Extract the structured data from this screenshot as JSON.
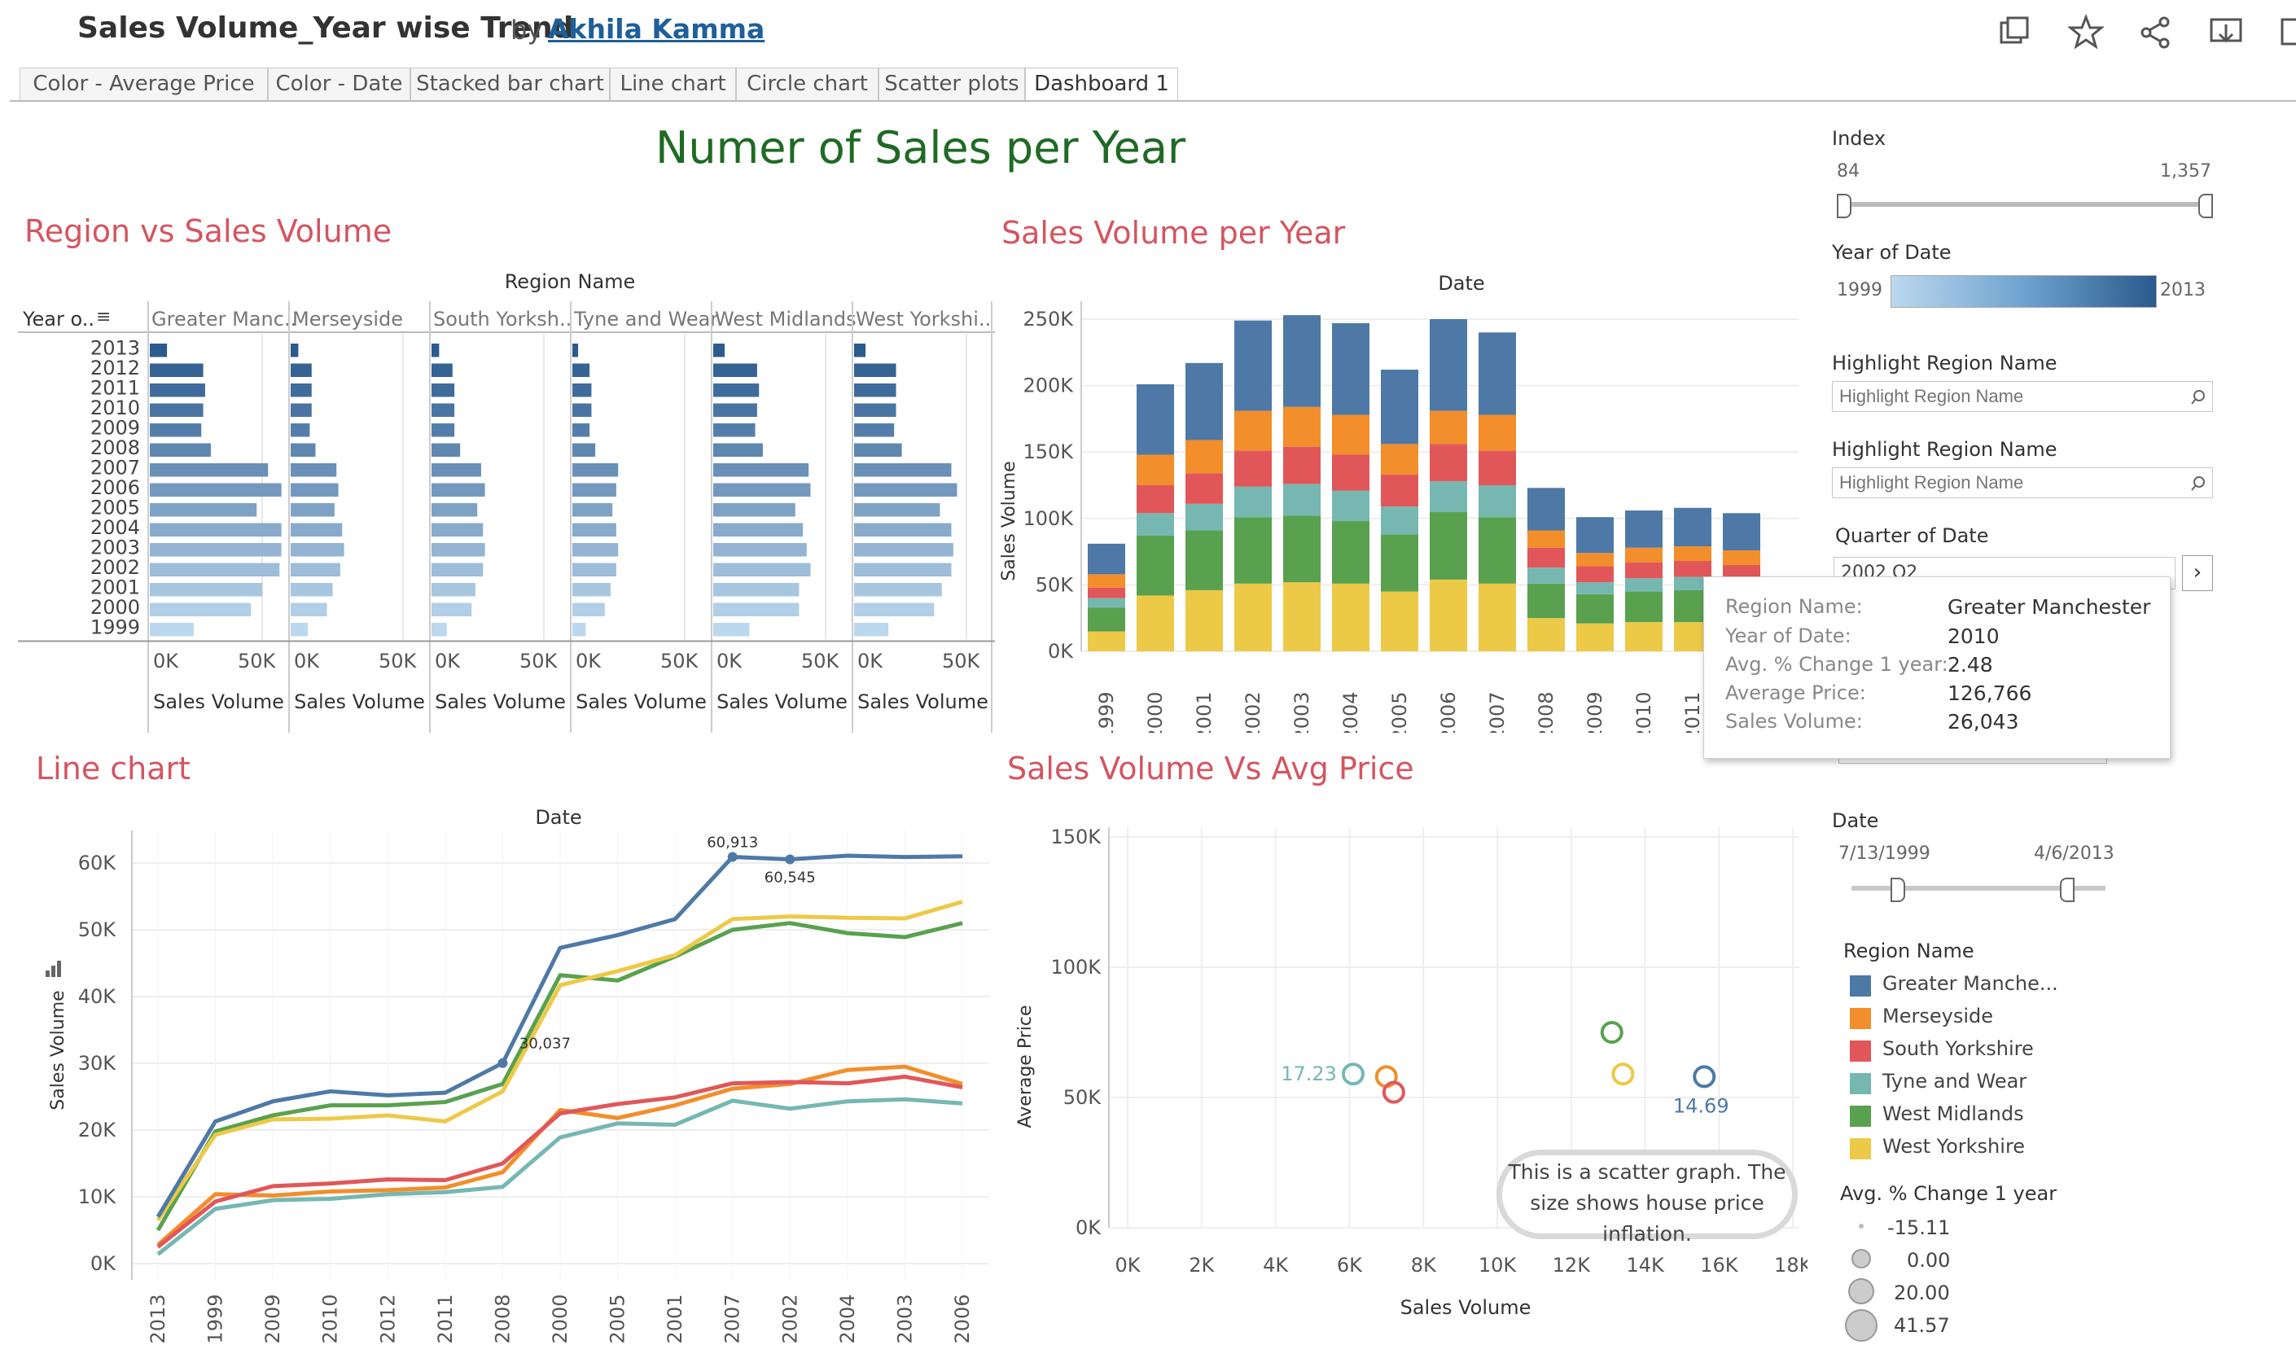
{
  "header": {
    "title": "Sales Volume_Year wise Trend",
    "by": "by",
    "author": "Akhila Kamma"
  },
  "tabs": [
    {
      "label": "Color - Average Price"
    },
    {
      "label": "Color - Date"
    },
    {
      "label": "Stacked bar chart"
    },
    {
      "label": "Line chart"
    },
    {
      "label": "Circle chart"
    },
    {
      "label": "Scatter plots"
    },
    {
      "label": "Dashboard 1",
      "active": true
    }
  ],
  "dashboard_title": "Numer of Sales per Year",
  "sheets": {
    "region_vs_sales": "Region vs Sales Volume",
    "sales_per_year": "Sales Volume per Year",
    "line_chart": "Line chart",
    "scatter": "Sales Volume Vs Avg Price"
  },
  "colors": {
    "Greater Manchester": "#4e79a7",
    "Merseyside": "#f28e2b",
    "South Yorkshire": "#e15759",
    "Tyne and Wear": "#76b7b2",
    "West Midlands": "#59a14f",
    "West Yorkshire": "#edc948",
    "title_red": "#d45560",
    "title_green": "#1f6a24"
  },
  "chart_data": [
    {
      "type": "bar",
      "orientation": "horizontal",
      "title": "Region vs Sales Volume",
      "column_header": "Region Name",
      "row_header": "Year o..",
      "xlabel": "Sales Volume",
      "region_headers": [
        "Greater Manc..",
        "Merseyside",
        "South Yorksh..",
        "Tyne and Wear",
        "West Midlands",
        "West Yorkshi.."
      ],
      "categories": [
        "2013",
        "2012",
        "2011",
        "2010",
        "2009",
        "2008",
        "2007",
        "2006",
        "2005",
        "2004",
        "2003",
        "2002",
        "2001",
        "2000",
        "1999"
      ],
      "x_ticks": [
        "0K",
        "50K"
      ],
      "xlim": [
        0,
        70000
      ],
      "series": [
        {
          "name": "Greater Manchester",
          "values": [
            9000,
            28000,
            29000,
            28000,
            27000,
            32000,
            62000,
            69000,
            56000,
            69000,
            69000,
            68000,
            59000,
            53000,
            23000
          ]
        },
        {
          "name": "Merseyside",
          "values": [
            4000,
            11000,
            11000,
            11000,
            10000,
            13000,
            24000,
            25000,
            23000,
            27000,
            28000,
            26000,
            22000,
            19000,
            9000
          ]
        },
        {
          "name": "South Yorkshire",
          "values": [
            4000,
            11000,
            12000,
            12000,
            12000,
            15000,
            26000,
            28000,
            24000,
            27000,
            28000,
            27000,
            23000,
            21000,
            8000
          ]
        },
        {
          "name": "Tyne and Wear",
          "values": [
            3000,
            9000,
            10000,
            10000,
            9000,
            12000,
            24000,
            23000,
            21000,
            23000,
            24000,
            23000,
            20000,
            17000,
            7000
          ]
        },
        {
          "name": "West Midlands",
          "values": [
            6000,
            23000,
            24000,
            23000,
            22000,
            26000,
            50000,
            51000,
            43000,
            47000,
            49000,
            51000,
            45000,
            45000,
            19000
          ]
        },
        {
          "name": "West Yorkshire",
          "values": [
            6000,
            22000,
            22000,
            22000,
            21000,
            25000,
            51000,
            54000,
            45000,
            51000,
            52000,
            51000,
            46000,
            42000,
            18000
          ]
        }
      ]
    },
    {
      "type": "bar",
      "stacked": true,
      "title": "Sales Volume per Year",
      "column_header": "Date",
      "ylabel": "Sales Volume",
      "categories": [
        "1999",
        "2000",
        "2001",
        "2002",
        "2003",
        "2004",
        "2005",
        "2006",
        "2007",
        "2008",
        "2009",
        "2010",
        "2011",
        "2012"
      ],
      "y_ticks": [
        "0K",
        "50K",
        "100K",
        "150K",
        "200K",
        "250K"
      ],
      "ylim": [
        0,
        250000
      ],
      "series": [
        {
          "name": "West Yorkshire",
          "values": [
            15000,
            42000,
            46000,
            51000,
            52000,
            51000,
            45000,
            54000,
            51000,
            25000,
            21000,
            22000,
            22000,
            22000
          ]
        },
        {
          "name": "West Midlands",
          "values": [
            18000,
            45000,
            45000,
            50000,
            50000,
            47000,
            43000,
            51000,
            50000,
            26000,
            22000,
            23000,
            24000,
            23000
          ]
        },
        {
          "name": "Tyne and Wear",
          "values": [
            7000,
            17000,
            20000,
            23000,
            24000,
            23000,
            21000,
            23000,
            24000,
            12000,
            9000,
            10000,
            10000,
            9000
          ]
        },
        {
          "name": "South Yorkshire",
          "values": [
            8000,
            21000,
            23000,
            27000,
            28000,
            27000,
            24000,
            28000,
            26000,
            15000,
            12000,
            12000,
            12000,
            11000
          ]
        },
        {
          "name": "Merseyside",
          "values": [
            10000,
            23000,
            25000,
            30000,
            30000,
            30000,
            23000,
            25000,
            27000,
            13000,
            10000,
            11000,
            11000,
            11000
          ]
        },
        {
          "name": "Greater Manchester",
          "values": [
            23000,
            53000,
            58000,
            68000,
            69000,
            69000,
            56000,
            69000,
            62000,
            32000,
            27000,
            28000,
            29000,
            28000
          ]
        }
      ]
    },
    {
      "type": "line",
      "title": "Line chart",
      "column_header": "Date",
      "ylabel": "Sales Volume",
      "categories": [
        "2013",
        "1999",
        "2009",
        "2010",
        "2012",
        "2011",
        "2008",
        "2000",
        "2005",
        "2001",
        "2007",
        "2002",
        "2004",
        "2003",
        "2006"
      ],
      "y_ticks": [
        "0K",
        "10K",
        "20K",
        "30K",
        "40K",
        "50K",
        "60K"
      ],
      "ylim": [
        0,
        65000
      ],
      "annotations": [
        {
          "label": "60,913",
          "series": "Greater Manchester",
          "category": "2007"
        },
        {
          "label": "60,545",
          "series": "Greater Manchester",
          "category": "2002"
        },
        {
          "label": "30,037",
          "series": "Greater Manchester",
          "category": "2008"
        }
      ],
      "series": [
        {
          "name": "Greater Manchester",
          "values": [
            7000,
            21300,
            24300,
            25800,
            25200,
            25600,
            30037,
            47300,
            49200,
            51600,
            60913,
            60545,
            61100,
            60900,
            61000
          ]
        },
        {
          "name": "West Yorkshire",
          "values": [
            6500,
            19300,
            21600,
            21700,
            22200,
            21300,
            25800,
            41700,
            43800,
            46200,
            51600,
            52000,
            51800,
            51700,
            54200
          ]
        },
        {
          "name": "West Midlands",
          "values": [
            5000,
            19800,
            22200,
            23700,
            23700,
            24200,
            26900,
            43200,
            42400,
            46000,
            50000,
            51000,
            49500,
            48900,
            51000
          ]
        },
        {
          "name": "South Yorkshire",
          "values": [
            2500,
            9300,
            11600,
            12000,
            12600,
            12500,
            15000,
            22500,
            23900,
            24900,
            27000,
            27200,
            27000,
            28000,
            26400
          ]
        },
        {
          "name": "Merseyside",
          "values": [
            2800,
            10400,
            10200,
            10800,
            11000,
            11400,
            13700,
            23000,
            21800,
            23700,
            26200,
            26900,
            29000,
            29500,
            26900
          ]
        },
        {
          "name": "Tyne and Wear",
          "values": [
            1400,
            8200,
            9500,
            9700,
            10400,
            10700,
            11500,
            18900,
            21000,
            20800,
            24400,
            23200,
            24300,
            24600,
            24000
          ]
        }
      ]
    },
    {
      "type": "scatter",
      "title": "Sales Volume Vs Avg Price",
      "xlabel": "Sales Volume",
      "ylabel": "Average Price",
      "x_ticks": [
        "0K",
        "2K",
        "4K",
        "6K",
        "8K",
        "10K",
        "12K",
        "14K",
        "16K",
        "18K"
      ],
      "y_ticks": [
        "0K",
        "50K",
        "100K",
        "150K"
      ],
      "xlim": [
        -600,
        18000
      ],
      "ylim": [
        0,
        150000
      ],
      "labels": [
        {
          "text": "17.23",
          "series": "Tyne and Wear"
        },
        {
          "text": "14.69",
          "series": "Greater Manchester"
        }
      ],
      "points": [
        {
          "name": "Tyne and Wear",
          "x": 6100,
          "y": 59000
        },
        {
          "name": "Merseyside",
          "x": 7000,
          "y": 58000
        },
        {
          "name": "South Yorkshire",
          "x": 7200,
          "y": 52000
        },
        {
          "name": "West Midlands",
          "x": 13100,
          "y": 75000
        },
        {
          "name": "West Yorkshire",
          "x": 13400,
          "y": 59000
        },
        {
          "name": "Greater Manchester",
          "x": 15600,
          "y": 58000
        }
      ],
      "annotation": "This is a scatter graph. The size shows house price inflation."
    }
  ],
  "filters": {
    "index": {
      "label": "Index",
      "min": "84",
      "max": "1,357"
    },
    "year_of_date": {
      "label": "Year of Date",
      "min": "1999",
      "max": "2013"
    },
    "highlight1": {
      "label": "Highlight Region Name",
      "placeholder": "Highlight Region Name"
    },
    "highlight2": {
      "label": "Highlight Region Name",
      "placeholder": "Highlight Region Name"
    },
    "quarter": {
      "label": "Quarter of Date",
      "value": "2002 Q2"
    },
    "date": {
      "label": "Date",
      "min": "7/13/1999",
      "max": "4/6/2013"
    },
    "region_legend": {
      "label": "Region Name",
      "items": [
        "Greater Manche...",
        "Merseyside",
        "South Yorkshire",
        "Tyne and Wear",
        "West Midlands",
        "West Yorkshire"
      ]
    },
    "size_legend": {
      "label": "Avg. % Change 1 year",
      "items": [
        "-15.11",
        "0.00",
        "20.00",
        "41.57"
      ]
    }
  },
  "tooltip": {
    "rows": [
      {
        "key": "Region Name:",
        "value": "Greater Manchester"
      },
      {
        "key": "Year of Date:",
        "value": "2010"
      },
      {
        "key": "Avg. % Change 1 year:",
        "value": "2.48"
      },
      {
        "key": "Average Price:",
        "value": "126,766"
      },
      {
        "key": "Sales Volume:",
        "value": "26,043"
      }
    ]
  }
}
